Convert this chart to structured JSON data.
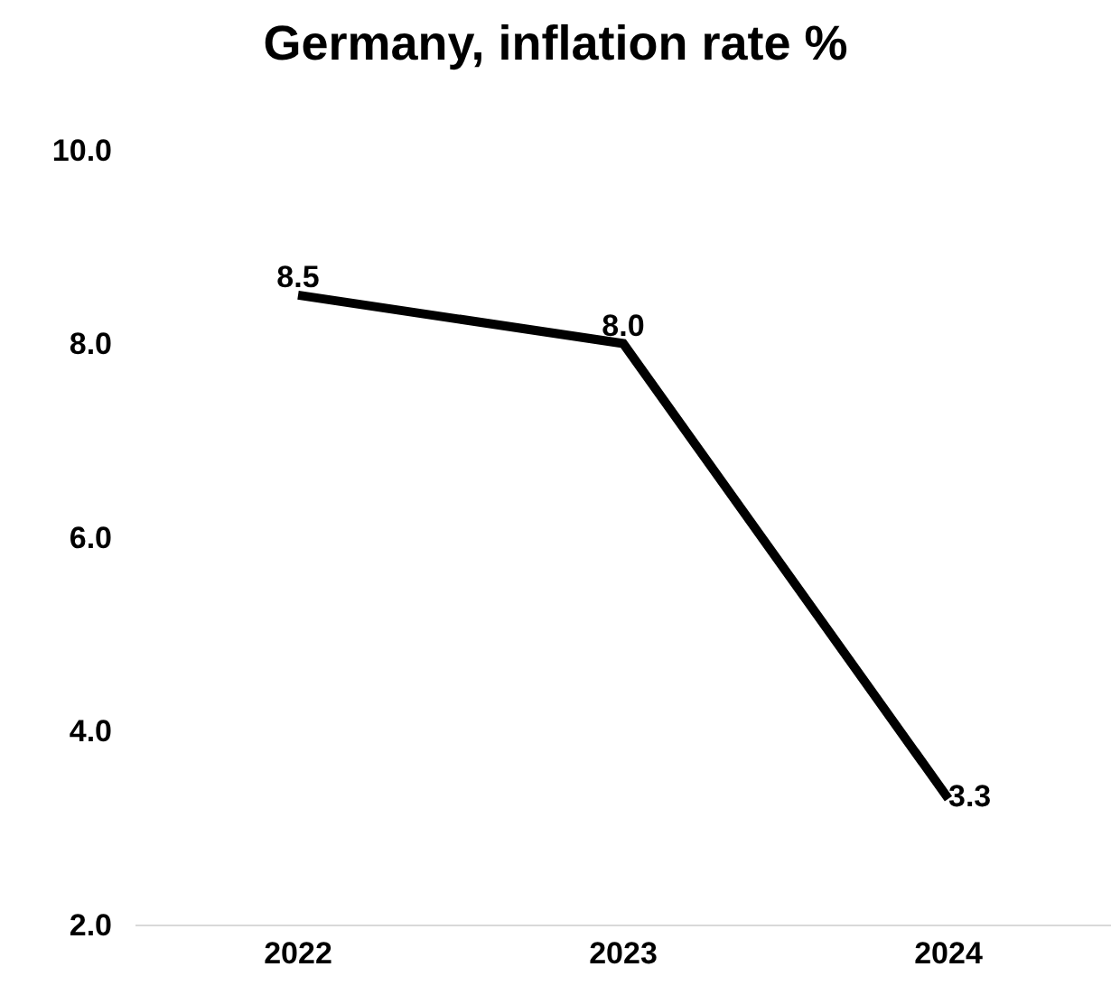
{
  "chart_data": {
    "type": "line",
    "title": "Germany, inflation rate %",
    "categories": [
      "2022",
      "2023",
      "2024"
    ],
    "series": [
      {
        "color": "#000000",
        "values": [
          8.5,
          8.0,
          3.3
        ],
        "value_labels": [
          "8.5",
          "8.0",
          "3.3"
        ]
      }
    ],
    "ylim": [
      2,
      10
    ],
    "yticks": [
      {
        "value": 2,
        "label": "2.0"
      },
      {
        "value": 4,
        "label": "4.0"
      },
      {
        "value": 6,
        "label": "6.0"
      },
      {
        "value": 8,
        "label": "8.0"
      },
      {
        "value": 10,
        "label": "10.0"
      }
    ],
    "marker": "none",
    "line_style": "solid"
  }
}
